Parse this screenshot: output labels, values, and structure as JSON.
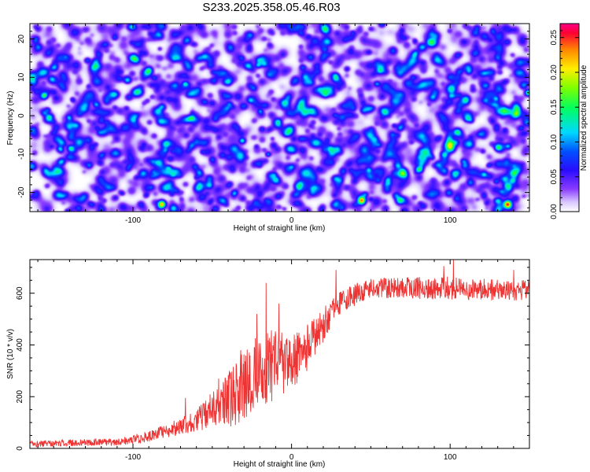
{
  "title": "S233.2025.358.05.46.R03",
  "chart_data": [
    {
      "type": "heatmap",
      "xlabel": "Height of straight line (km)",
      "ylabel": "Frequency (Hz)",
      "xlim": [
        -165,
        150
      ],
      "ylim": [
        -25,
        24
      ],
      "xticks": [
        -100,
        0,
        100
      ],
      "yticks": [
        -20,
        -10,
        0,
        10,
        20
      ],
      "colorbar": {
        "label": "Normalized spectral amplitude",
        "range": [
          0,
          0.27
        ],
        "ticks": [
          0.0,
          0.05,
          0.1,
          0.15,
          0.2,
          0.25
        ],
        "tick_labels": [
          "0.00",
          "0.05",
          "0.10",
          "0.15",
          "0.20",
          "0.25"
        ]
      },
      "typical_amplitude": 0.03,
      "hotspots": [
        {
          "x": -82,
          "y": -23,
          "value": 0.22
        },
        {
          "x": 44,
          "y": -22,
          "value": 0.23
        },
        {
          "x": 136,
          "y": -23,
          "value": 0.24
        },
        {
          "x": -52,
          "y": -18,
          "value": 0.1
        },
        {
          "x": 68,
          "y": -22,
          "value": 0.11
        },
        {
          "x": 99,
          "y": -20,
          "value": 0.09
        },
        {
          "x": 140,
          "y": -15,
          "value": 0.09
        },
        {
          "x": 142,
          "y": 2,
          "value": 0.1
        },
        {
          "x": 146,
          "y": 8,
          "value": 0.09
        },
        {
          "x": 28,
          "y": 10,
          "value": 0.09
        },
        {
          "x": -40,
          "y": 9,
          "value": 0.08
        },
        {
          "x": -145,
          "y": -7,
          "value": 0.08
        },
        {
          "x": 82,
          "y": 18,
          "value": 0.08
        },
        {
          "x": 110,
          "y": 4,
          "value": 0.08
        },
        {
          "x": -160,
          "y": 18,
          "value": 0.08
        },
        {
          "x": -90,
          "y": 12,
          "value": 0.07
        }
      ]
    },
    {
      "type": "line",
      "xlabel": "Height of straight line (km)",
      "ylabel": "SNR (10 * v/v)",
      "xlim": [
        -165,
        150
      ],
      "ylim": [
        0,
        730
      ],
      "xticks": [
        -100,
        0,
        100
      ],
      "yticks": [
        0,
        200,
        400,
        600
      ],
      "color": "#ee3333",
      "trend": [
        [
          -165,
          18
        ],
        [
          -110,
          25
        ],
        [
          -90,
          45
        ],
        [
          -75,
          75
        ],
        [
          -60,
          110
        ],
        [
          -45,
          160
        ],
        [
          -30,
          240
        ],
        [
          -20,
          300
        ],
        [
          -10,
          320
        ],
        [
          0,
          330
        ],
        [
          10,
          390
        ],
        [
          20,
          480
        ],
        [
          30,
          560
        ],
        [
          45,
          610
        ],
        [
          60,
          620
        ],
        [
          100,
          620
        ],
        [
          150,
          610
        ]
      ],
      "noise": [
        [
          -165,
          12
        ],
        [
          -110,
          14
        ],
        [
          -80,
          25
        ],
        [
          -60,
          45
        ],
        [
          -45,
          90
        ],
        [
          -30,
          140
        ],
        [
          -15,
          150
        ],
        [
          0,
          120
        ],
        [
          15,
          80
        ],
        [
          30,
          45
        ],
        [
          60,
          40
        ],
        [
          100,
          45
        ],
        [
          150,
          40
        ]
      ],
      "peaks": [
        [
          -67,
          195
        ],
        [
          -46,
          270
        ],
        [
          -32,
          380
        ],
        [
          -22,
          520
        ],
        [
          -16,
          640
        ],
        [
          -8,
          560
        ],
        [
          14,
          500
        ],
        [
          28,
          690
        ],
        [
          102,
          730
        ],
        [
          96,
          705
        ],
        [
          140,
          690
        ]
      ]
    }
  ]
}
